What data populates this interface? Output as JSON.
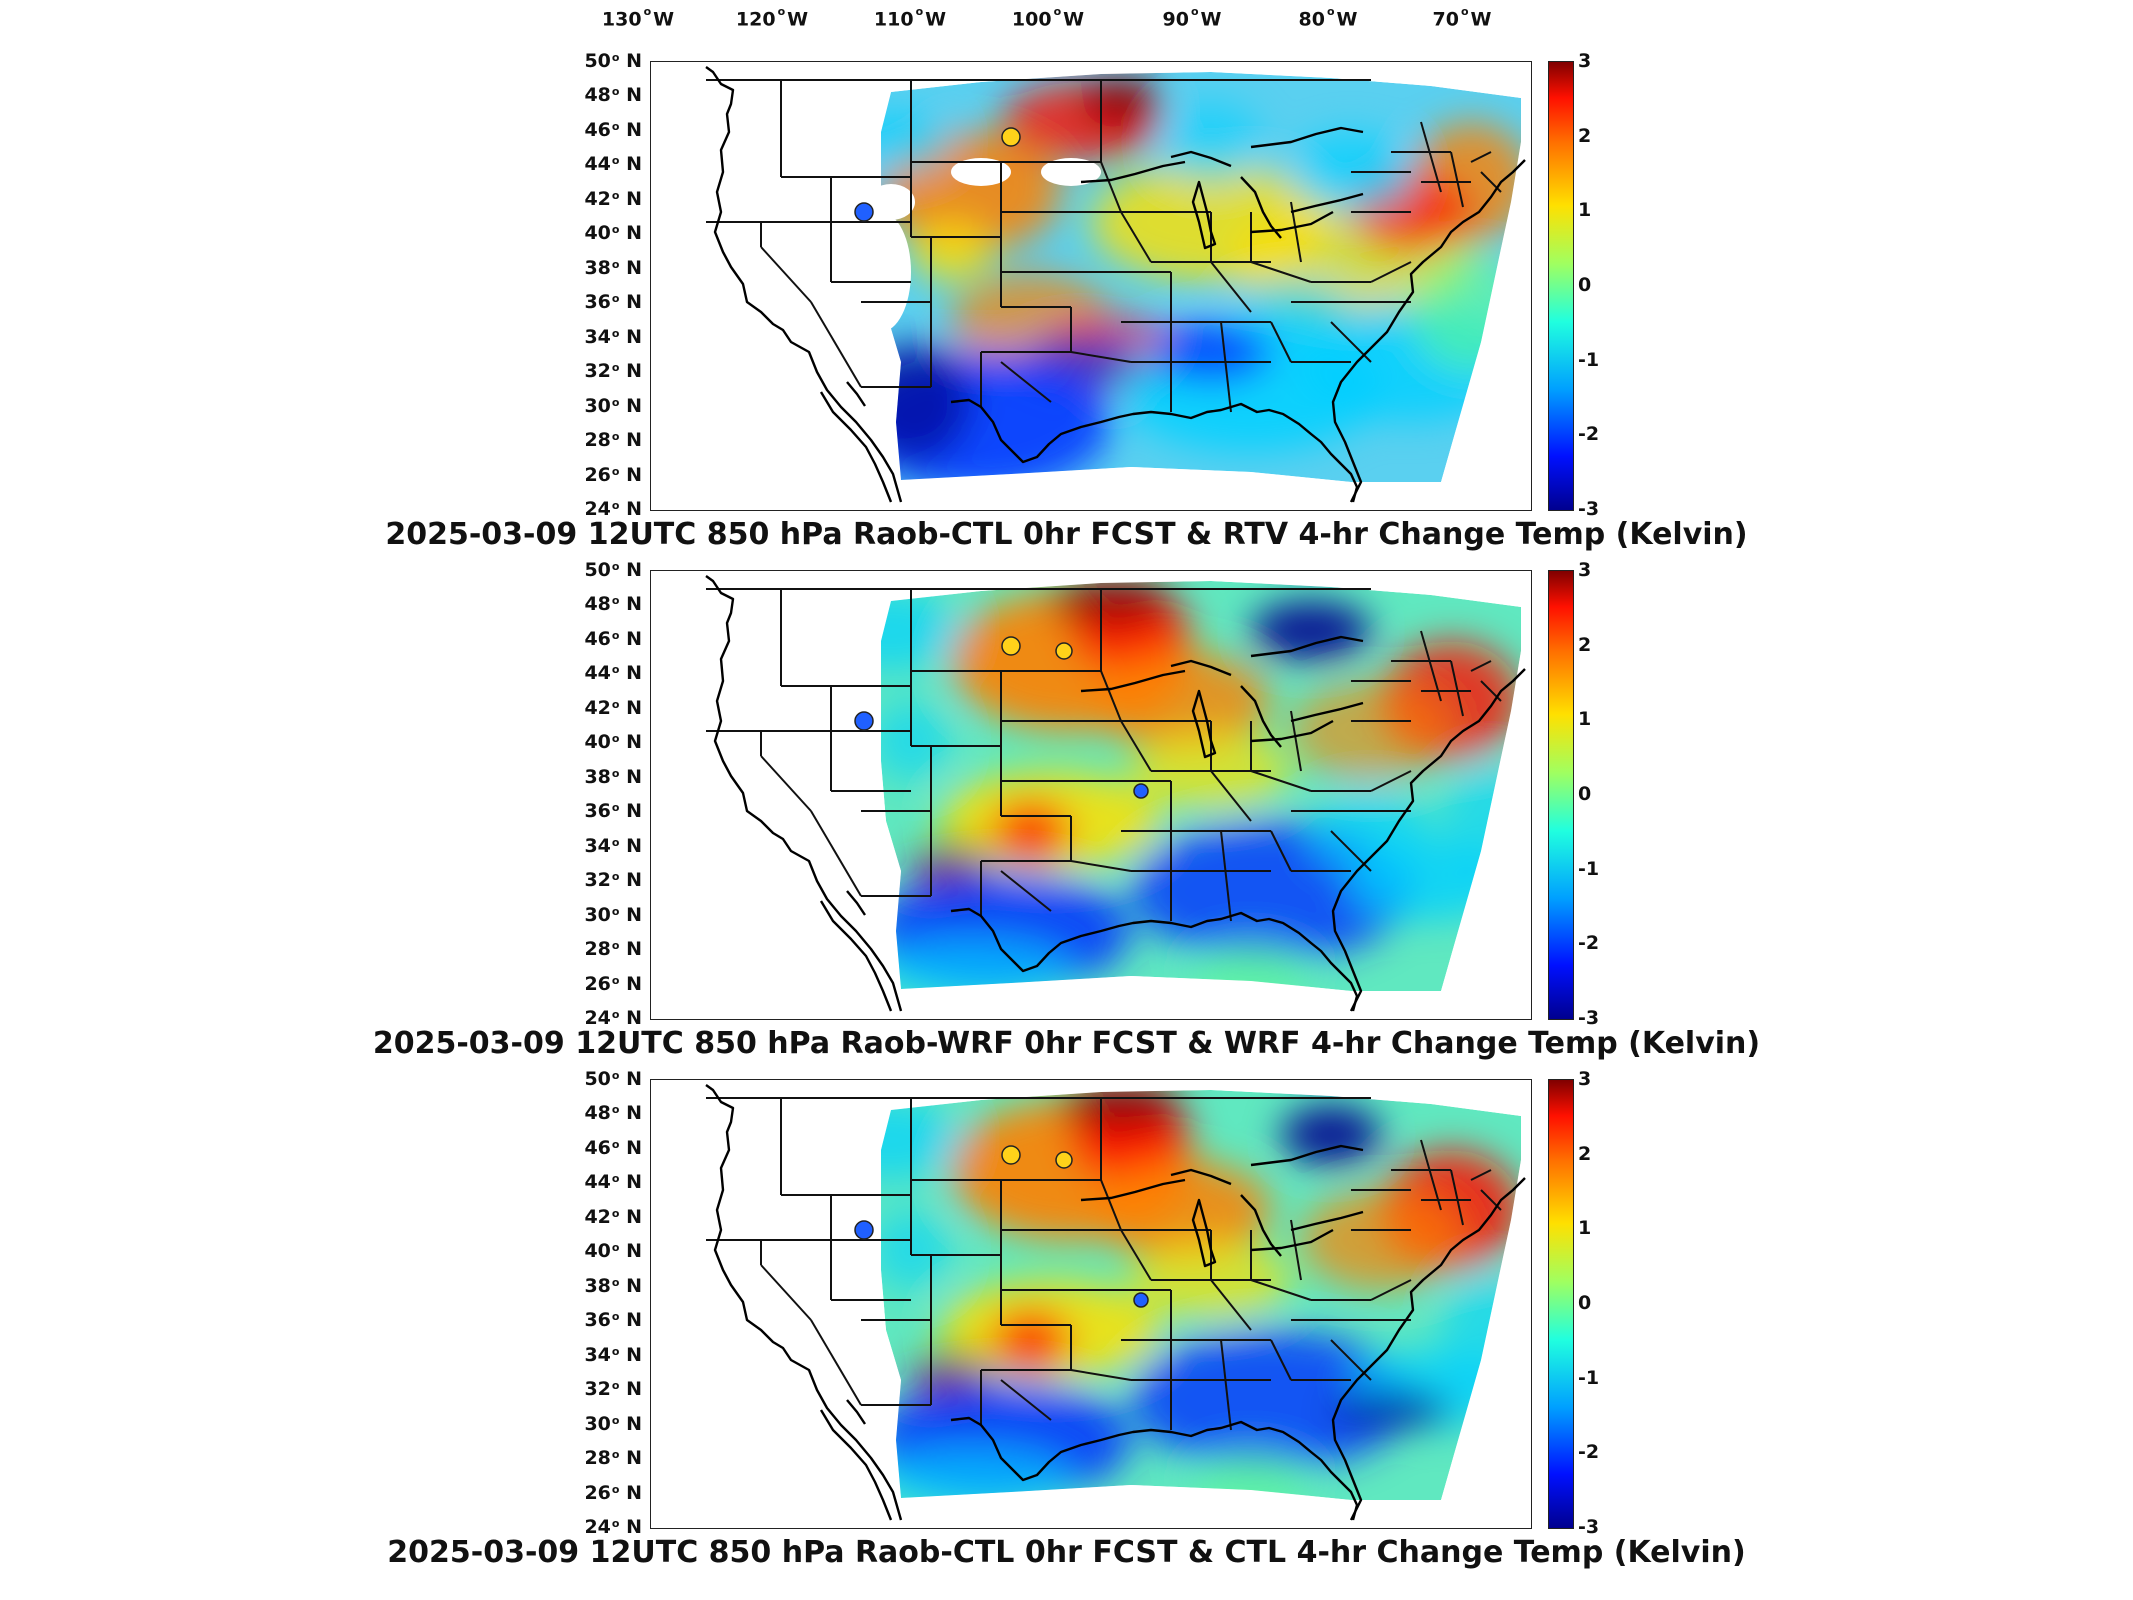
{
  "lon_labels": [
    {
      "deg": "130",
      "hemi": "W"
    },
    {
      "deg": "120",
      "hemi": "W"
    },
    {
      "deg": "110",
      "hemi": "W"
    },
    {
      "deg": "100",
      "hemi": "W"
    },
    {
      "deg": "90",
      "hemi": "W"
    },
    {
      "deg": "80",
      "hemi": "W"
    },
    {
      "deg": "70",
      "hemi": "W"
    }
  ],
  "lat_labels": [
    {
      "deg": "50",
      "hemi": "N"
    },
    {
      "deg": "48",
      "hemi": "N"
    },
    {
      "deg": "46",
      "hemi": "N"
    },
    {
      "deg": "44",
      "hemi": "N"
    },
    {
      "deg": "42",
      "hemi": "N"
    },
    {
      "deg": "40",
      "hemi": "N"
    },
    {
      "deg": "38",
      "hemi": "N"
    },
    {
      "deg": "36",
      "hemi": "N"
    },
    {
      "deg": "34",
      "hemi": "N"
    },
    {
      "deg": "32",
      "hemi": "N"
    },
    {
      "deg": "30",
      "hemi": "N"
    },
    {
      "deg": "28",
      "hemi": "N"
    },
    {
      "deg": "26",
      "hemi": "N"
    },
    {
      "deg": "24",
      "hemi": "N"
    }
  ],
  "colorbar": {
    "ticks": [
      "3",
      "2",
      "1",
      "0",
      "-1",
      "-2",
      "-3"
    ],
    "range": [
      -3,
      3
    ],
    "colormap": "jet"
  },
  "panels": [
    {
      "title": "2025-03-09 12UTC 850 hPa Raob-CTL 0hr FCST & RTV 4-hr Change Temp (Kelvin)"
    },
    {
      "title": "2025-03-09 12UTC 850 hPa Raob-WRF 0hr FCST & WRF 4-hr Change Temp (Kelvin)"
    },
    {
      "title": "2025-03-09 12UTC 850 hPa Raob-CTL 0hr FCST & CTL 4-hr Change Temp (Kelvin)"
    }
  ],
  "colors": {
    "deep_blue": "#00008f",
    "blue": "#0030ff",
    "cyan": "#00d0ff",
    "green": "#60ff90",
    "yellow": "#ffe000",
    "orange": "#ff8000",
    "red": "#ff1000",
    "dark_red": "#900000",
    "obs_marker_warm": "#ffd21a",
    "obs_marker_cold": "#2060ff"
  }
}
